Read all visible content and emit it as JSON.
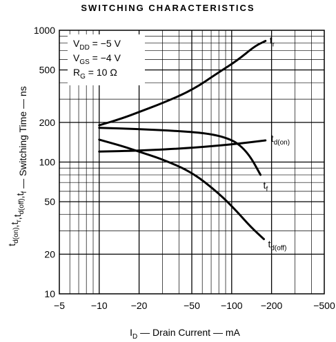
{
  "chart_data": {
    "type": "line",
    "title": "SWITCHING CHARACTERISTICS",
    "xlabel": {
      "main": "I",
      "sub": "D",
      "rest": " — Drain Current — mA"
    },
    "ylabel": {
      "parts": [
        {
          "t": "t",
          "sub": "d(on)"
        },
        {
          "t": ",t",
          "sub": "r"
        },
        {
          "t": ",t",
          "sub": "d(off)"
        },
        {
          "t": ",t",
          "sub": "f"
        },
        {
          "t": " — Switching Time — ns",
          "sub": ""
        }
      ]
    },
    "x_scale": "log",
    "y_scale": "log",
    "xlim": [
      -5,
      -500
    ],
    "ylim": [
      10,
      1000
    ],
    "x_ticks": [
      "−5",
      "−10",
      "−20",
      "−50",
      "−100",
      "−200",
      "−500"
    ],
    "x_tick_values": [
      5,
      10,
      20,
      50,
      100,
      200,
      500
    ],
    "y_ticks": [
      "1000",
      "500",
      "200",
      "100",
      "50",
      "20",
      "10"
    ],
    "y_tick_values": [
      1000,
      500,
      200,
      100,
      50,
      20,
      10
    ],
    "grid": true,
    "conditions": [
      {
        "main": "V",
        "sub": "DD",
        "rest": " = −5 V"
      },
      {
        "main": "V",
        "sub": "GS",
        "rest": " = −4 V"
      },
      {
        "main": "R",
        "sub": "G",
        "rest": " = 10 Ω"
      }
    ],
    "series": [
      {
        "name": "t_r",
        "label_main": "t",
        "label_sub": "r",
        "x": [
          10,
          15,
          20,
          30,
          50,
          80,
          110,
          150,
          180
        ],
        "y": [
          190,
          215,
          240,
          280,
          350,
          480,
          590,
          760,
          830
        ]
      },
      {
        "name": "t_d(on)",
        "label_main": "t",
        "label_sub": "d(on)",
        "x": [
          10,
          20,
          50,
          100,
          180
        ],
        "y": [
          120,
          122,
          128,
          136,
          146
        ]
      },
      {
        "name": "t_f",
        "label_main": "t",
        "label_sub": "f",
        "x": [
          10,
          20,
          40,
          70,
          100,
          120,
          140,
          165
        ],
        "y": [
          182,
          178,
          172,
          164,
          148,
          130,
          108,
          80
        ]
      },
      {
        "name": "t_d(off)",
        "label_main": "t",
        "label_sub": "d(off)",
        "x": [
          10,
          15,
          20,
          30,
          50,
          80,
          110,
          140,
          175
        ],
        "y": [
          148,
          132,
          120,
          105,
          84,
          58,
          42,
          32,
          26
        ]
      }
    ]
  }
}
